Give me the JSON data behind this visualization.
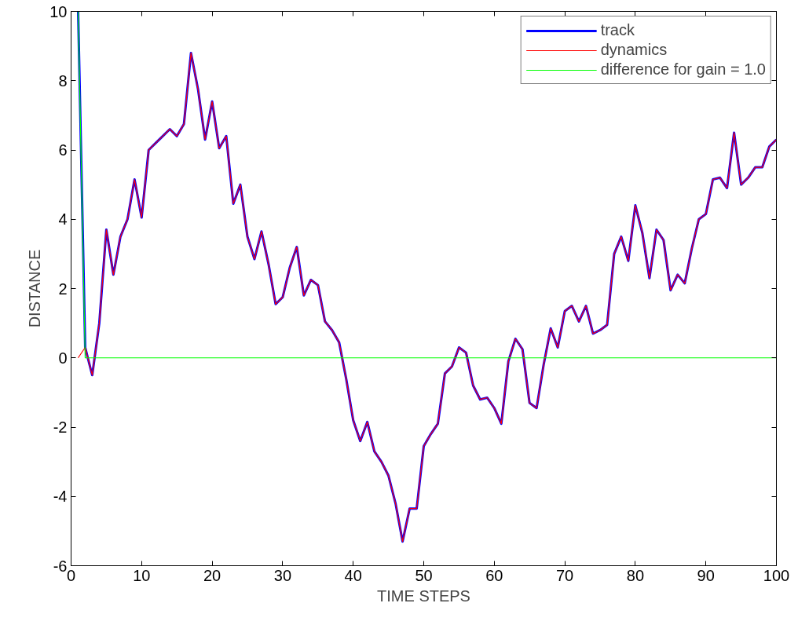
{
  "chart_data": {
    "type": "line",
    "xlabel": "TIME STEPS",
    "ylabel": "DISTANCE",
    "x": [
      1,
      2,
      3,
      4,
      5,
      6,
      7,
      8,
      9,
      10,
      11,
      12,
      13,
      14,
      15,
      16,
      17,
      18,
      19,
      20,
      21,
      22,
      23,
      24,
      25,
      26,
      27,
      28,
      29,
      30,
      31,
      32,
      33,
      34,
      35,
      36,
      37,
      38,
      39,
      40,
      41,
      42,
      43,
      44,
      45,
      46,
      47,
      48,
      49,
      50,
      51,
      52,
      53,
      54,
      55,
      56,
      57,
      58,
      59,
      60,
      61,
      62,
      63,
      64,
      65,
      66,
      67,
      68,
      69,
      70,
      71,
      72,
      73,
      74,
      75,
      76,
      77,
      78,
      79,
      80,
      81,
      82,
      83,
      84,
      85,
      86,
      87,
      88,
      89,
      90,
      91,
      92,
      93,
      94,
      95,
      96,
      97,
      98,
      99,
      100
    ],
    "series": [
      {
        "name": "track",
        "color": "#0000ff",
        "values": [
          10,
          0.3,
          -0.5,
          1.0,
          3.7,
          2.4,
          3.5,
          4.0,
          5.15,
          4.05,
          6.0,
          6.2,
          6.4,
          6.6,
          6.4,
          6.75,
          8.8,
          7.75,
          6.3,
          7.4,
          6.05,
          6.4,
          4.45,
          5.0,
          3.5,
          2.85,
          3.65,
          2.7,
          1.55,
          1.75,
          2.6,
          3.2,
          1.8,
          2.25,
          2.1,
          1.05,
          0.8,
          0.45,
          -0.6,
          -1.8,
          -2.4,
          -1.85,
          -2.7,
          -3.0,
          -3.4,
          -4.2,
          -5.3,
          -4.35,
          -4.35,
          -2.55,
          -2.2,
          -1.9,
          -0.45,
          -0.25,
          0.3,
          0.15,
          -0.8,
          -1.2,
          -1.15,
          -1.45,
          -1.9,
          -0.1,
          0.55,
          0.25,
          -1.3,
          -1.45,
          -0.2,
          0.85,
          0.3,
          1.35,
          1.5,
          1.05,
          1.5,
          0.7,
          0.8,
          0.95,
          3.0,
          3.5,
          2.8,
          4.4,
          3.6,
          2.3,
          3.7,
          3.4,
          1.95,
          2.4,
          2.15,
          3.15,
          4.0,
          4.15,
          5.15,
          5.2,
          4.9,
          6.5,
          5.0,
          5.2,
          5.5,
          5.5,
          6.1,
          6.3
        ]
      },
      {
        "name": "dynamics",
        "color": "#ff0000",
        "values": [
          0,
          0.3,
          -0.5,
          1.0,
          3.7,
          2.4,
          3.5,
          4.0,
          5.15,
          4.05,
          6.0,
          6.2,
          6.4,
          6.6,
          6.4,
          6.75,
          8.8,
          7.75,
          6.3,
          7.4,
          6.05,
          6.4,
          4.45,
          5.0,
          3.5,
          2.85,
          3.65,
          2.7,
          1.55,
          1.75,
          2.6,
          3.2,
          1.8,
          2.25,
          2.1,
          1.05,
          0.8,
          0.45,
          -0.6,
          -1.8,
          -2.4,
          -1.85,
          -2.7,
          -3.0,
          -3.4,
          -4.2,
          -5.3,
          -4.35,
          -4.35,
          -2.55,
          -2.2,
          -1.9,
          -0.45,
          -0.25,
          0.3,
          0.15,
          -0.8,
          -1.2,
          -1.15,
          -1.45,
          -1.9,
          -0.1,
          0.55,
          0.25,
          -1.3,
          -1.45,
          -0.2,
          0.85,
          0.3,
          1.35,
          1.5,
          1.05,
          1.5,
          0.7,
          0.8,
          0.95,
          3.0,
          3.5,
          2.8,
          4.4,
          3.6,
          2.3,
          3.7,
          3.4,
          1.95,
          2.4,
          2.15,
          3.15,
          4.0,
          4.15,
          5.15,
          5.2,
          4.9,
          6.5,
          5.0,
          5.2,
          5.5,
          5.5,
          6.1,
          6.3
        ]
      },
      {
        "name": "difference for gain = 1.0",
        "color": "#00ff00",
        "values": [
          10,
          0,
          0,
          0,
          0,
          0,
          0,
          0,
          0,
          0,
          0,
          0,
          0,
          0,
          0,
          0,
          0,
          0,
          0,
          0,
          0,
          0,
          0,
          0,
          0,
          0,
          0,
          0,
          0,
          0,
          0,
          0,
          0,
          0,
          0,
          0,
          0,
          0,
          0,
          0,
          0,
          0,
          0,
          0,
          0,
          0,
          0,
          0,
          0,
          0,
          0,
          0,
          0,
          0,
          0,
          0,
          0,
          0,
          0,
          0,
          0,
          0,
          0,
          0,
          0,
          0,
          0,
          0,
          0,
          0,
          0,
          0,
          0,
          0,
          0,
          0,
          0,
          0,
          0,
          0,
          0,
          0,
          0,
          0,
          0,
          0,
          0,
          0,
          0,
          0,
          0,
          0,
          0,
          0,
          0,
          0,
          0,
          0,
          0,
          0
        ]
      }
    ],
    "xlim": [
      0,
      100
    ],
    "xticks": [
      0,
      10,
      20,
      30,
      40,
      50,
      60,
      70,
      80,
      90,
      100
    ],
    "ylim": [
      -6,
      10
    ],
    "yticks": [
      -6,
      -4,
      -2,
      0,
      2,
      4,
      6,
      8,
      10
    ],
    "grid": false,
    "legend": "top right",
    "marker": "none",
    "line_style": "solid"
  }
}
